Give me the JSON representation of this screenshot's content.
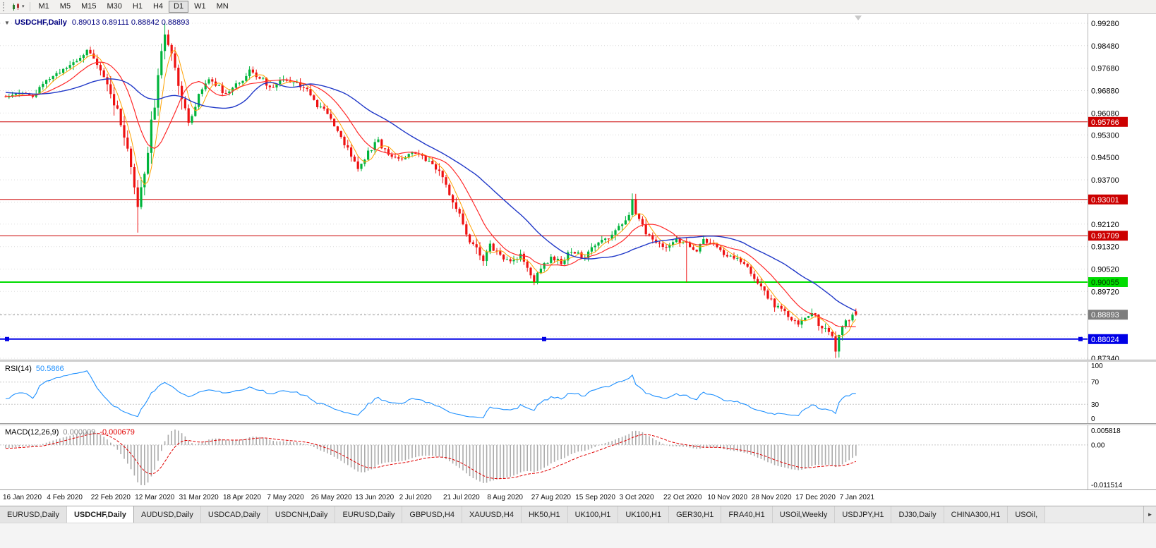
{
  "toolbar": {
    "timeframes": [
      "M1",
      "M5",
      "M15",
      "M30",
      "H1",
      "H4",
      "D1",
      "W1",
      "MN"
    ],
    "active_timeframe": "D1"
  },
  "icons": {
    "chart_type": "candlestick-chart-icon",
    "dropdown_caret": "▾",
    "chart_collapse": "▼",
    "tab_scroll_right": "►"
  },
  "chart": {
    "symbol_period": "USDCHF,Daily",
    "ohlc": "0.89013 0.89111 0.88842 0.88893"
  },
  "time_axis": {
    "dates": [
      "16 Jan 2020",
      "4 Feb 2020",
      "22 Feb 2020",
      "12 Mar 2020",
      "31 Mar 2020",
      "18 Apr 2020",
      "7 May 2020",
      "26 May 2020",
      "13 Jun 2020",
      "2 Jul 2020",
      "21 Jul 2020",
      "8 Aug 2020",
      "27 Aug 2020",
      "15 Sep 2020",
      "3 Oct 2020",
      "22 Oct 2020",
      "10 Nov 2020",
      "28 Nov 2020",
      "17 Dec 2020",
      "7 Jan 2021"
    ]
  },
  "tabs": {
    "items": [
      {
        "label": "EURUSD,Daily",
        "active": false
      },
      {
        "label": "USDCHF,Daily",
        "active": true
      },
      {
        "label": "AUDUSD,Daily",
        "active": false
      },
      {
        "label": "USDCAD,Daily",
        "active": false
      },
      {
        "label": "USDCNH,Daily",
        "active": false
      },
      {
        "label": "EURUSD,Daily",
        "active": false
      },
      {
        "label": "GBPUSD,H4",
        "active": false
      },
      {
        "label": "XAUUSD,H4",
        "active": false
      },
      {
        "label": "HK50,H1",
        "active": false
      },
      {
        "label": "UK100,H1",
        "active": false
      },
      {
        "label": "UK100,H1",
        "active": false
      },
      {
        "label": "GER30,H1",
        "active": false
      },
      {
        "label": "FRA40,H1",
        "active": false
      },
      {
        "label": "USOil,Weekly",
        "active": false
      },
      {
        "label": "USDJPY,H1",
        "active": false
      },
      {
        "label": "DJ30,Daily",
        "active": false
      },
      {
        "label": "CHINA300,H1",
        "active": false
      },
      {
        "label": "USOil,",
        "active": false
      }
    ]
  },
  "chart_data": {
    "type": "candlestick",
    "symbol": "USDCHF",
    "timeframe": "Daily",
    "current_ohlc": {
      "open": 0.89013,
      "high": 0.89111,
      "low": 0.88842,
      "close": 0.88893
    },
    "main": {
      "visible_candles": 252,
      "y_range": [
        0.8734,
        0.9928
      ],
      "colors": {
        "up": "#00b43c",
        "down": "#ee1111"
      },
      "grid": [
        {
          "price": 0.9928,
          "label": "0.99280"
        },
        {
          "price": 0.9848,
          "label": "0.98480"
        },
        {
          "price": 0.9768,
          "label": "0.97680"
        },
        {
          "price": 0.9688,
          "label": "0.96880"
        },
        {
          "price": 0.9608,
          "label": "0.96080"
        },
        {
          "price": 0.953,
          "label": "0.95300"
        },
        {
          "price": 0.945,
          "label": "0.94500"
        },
        {
          "price": 0.937,
          "label": "0.93700"
        },
        {
          "price": 0.929,
          "label": null
        },
        {
          "price": 0.9212,
          "label": "0.92120"
        },
        {
          "price": 0.9132,
          "label": "0.91320"
        },
        {
          "price": 0.9052,
          "label": "0.90520"
        },
        {
          "price": 0.8972,
          "label": "0.89720"
        },
        {
          "price": 0.8892,
          "label": null
        },
        {
          "price": 0.8812,
          "label": null
        },
        {
          "price": 0.8734,
          "label": "0.87340"
        }
      ],
      "axis_markers": [
        {
          "price": 0.95766,
          "text": "0.95766",
          "bg": "#cc0000",
          "fg": "#ffffff"
        },
        {
          "price": 0.93001,
          "text": "0.93001",
          "bg": "#cc0000",
          "fg": "#ffffff"
        },
        {
          "price": 0.91709,
          "text": "0.91709",
          "bg": "#cc0000",
          "fg": "#ffffff"
        },
        {
          "price": 0.90055,
          "text": "0.90055",
          "bg": "#00dc00",
          "fg": "#003b00"
        },
        {
          "price": 0.88893,
          "text": "0.88893",
          "bg": "#7d7d7d",
          "fg": "#ffffff"
        },
        {
          "price": 0.88024,
          "text": "0.88024",
          "bg": "#0000e6",
          "fg": "#ffffff"
        }
      ],
      "hlines": [
        {
          "price": 0.95766,
          "color": "#cc0000",
          "width": 1,
          "handles": false
        },
        {
          "price": 0.93001,
          "color": "#cc0000",
          "width": 1,
          "handles": false
        },
        {
          "price": 0.91709,
          "color": "#cc0000",
          "width": 1,
          "handles": false
        },
        {
          "price": 0.90055,
          "color": "#00dc00",
          "width": 2,
          "handles": false
        },
        {
          "price": 0.88024,
          "color": "#0000e6",
          "width": 2,
          "handles": true
        }
      ],
      "current_price": 0.88893,
      "moving_averages": [
        {
          "name": "fast",
          "period": 5,
          "color": "#ffa200",
          "width": 1
        },
        {
          "name": "medium",
          "period": 13,
          "color": "#ff2a2a",
          "width": 1.2
        },
        {
          "name": "slow",
          "period": 34,
          "color": "#2038c8",
          "width": 1.4
        }
      ],
      "pre_close_anchors": [
        [
          -40,
          0.9718
        ],
        [
          -30,
          0.9702
        ],
        [
          -20,
          0.9688
        ],
        [
          -10,
          0.9672
        ]
      ],
      "close_anchors": [
        [
          0,
          0.9665
        ],
        [
          4,
          0.9688
        ],
        [
          8,
          0.9668
        ],
        [
          13,
          0.9732
        ],
        [
          18,
          0.9768
        ],
        [
          22,
          0.9812
        ],
        [
          24,
          0.9838
        ],
        [
          26,
          0.9792
        ],
        [
          29,
          0.9732
        ],
        [
          32,
          0.9642
        ],
        [
          35,
          0.9522
        ],
        [
          38,
          0.9332
        ],
        [
          39,
          0.9268
        ],
        [
          41,
          0.9402
        ],
        [
          43,
          0.9562
        ],
        [
          45,
          0.9722
        ],
        [
          47,
          0.9902
        ],
        [
          48,
          0.9862
        ],
        [
          50,
          0.9782
        ],
        [
          52,
          0.9662
        ],
        [
          54,
          0.9572
        ],
        [
          57,
          0.9672
        ],
        [
          60,
          0.9732
        ],
        [
          63,
          0.9702
        ],
        [
          65,
          0.9672
        ],
        [
          68,
          0.9706
        ],
        [
          72,
          0.9756
        ],
        [
          76,
          0.9726
        ],
        [
          78,
          0.9696
        ],
        [
          82,
          0.9731
        ],
        [
          86,
          0.9716
        ],
        [
          89,
          0.9691
        ],
        [
          91,
          0.9646
        ],
        [
          95,
          0.9606
        ],
        [
          99,
          0.9526
        ],
        [
          102,
          0.9451
        ],
        [
          104,
          0.9406
        ],
        [
          107,
          0.9476
        ],
        [
          110,
          0.9506
        ],
        [
          113,
          0.9461
        ],
        [
          117,
          0.9446
        ],
        [
          121,
          0.9471
        ],
        [
          125,
          0.9431
        ],
        [
          128,
          0.9391
        ],
        [
          130,
          0.9351
        ],
        [
          133,
          0.9271
        ],
        [
          136,
          0.9181
        ],
        [
          139,
          0.9116
        ],
        [
          141,
          0.9086
        ],
        [
          143,
          0.9131
        ],
        [
          146,
          0.9106
        ],
        [
          149,
          0.9071
        ],
        [
          152,
          0.9101
        ],
        [
          155,
          0.9036
        ],
        [
          156,
          0.9011
        ],
        [
          158,
          0.9061
        ],
        [
          161,
          0.9091
        ],
        [
          164,
          0.9076
        ],
        [
          167,
          0.9121
        ],
        [
          169,
          0.9106
        ],
        [
          171,
          0.9086
        ],
        [
          173,
          0.9126
        ],
        [
          176,
          0.9151
        ],
        [
          179,
          0.9171
        ],
        [
          182,
          0.9206
        ],
        [
          184,
          0.9256
        ],
        [
          185,
          0.9291
        ],
        [
          187,
          0.9231
        ],
        [
          189,
          0.9176
        ],
        [
          192,
          0.9151
        ],
        [
          195,
          0.9131
        ],
        [
          198,
          0.9161
        ],
        [
          201,
          0.9141
        ],
        [
          204,
          0.9116
        ],
        [
          206,
          0.9156
        ],
        [
          208,
          0.9141
        ],
        [
          211,
          0.9116
        ],
        [
          214,
          0.9096
        ],
        [
          217,
          0.9076
        ],
        [
          219,
          0.9051
        ],
        [
          221,
          0.9021
        ],
        [
          223,
          0.8986
        ],
        [
          225,
          0.8946
        ],
        [
          227,
          0.8926
        ],
        [
          229,
          0.8906
        ],
        [
          231,
          0.8886
        ],
        [
          234,
          0.8856
        ],
        [
          236,
          0.8876
        ],
        [
          238,
          0.8891
        ],
        [
          240,
          0.8862
        ],
        [
          242,
          0.8836
        ],
        [
          244,
          0.8801
        ],
        [
          245,
          0.8769
        ],
        [
          246,
          0.8821
        ],
        [
          248,
          0.8869
        ],
        [
          250,
          0.8888
        ],
        [
          251,
          0.88893
        ]
      ],
      "volatility_zones": [
        [
          18,
          28,
          1.4
        ],
        [
          30,
          52,
          2.6
        ],
        [
          96,
          108,
          1.3
        ],
        [
          128,
          143,
          1.6
        ],
        [
          178,
          190,
          1.5
        ],
        [
          218,
          232,
          1.2
        ],
        [
          238,
          249,
          1.5
        ]
      ],
      "wick_overrides": {
        "39": {
          "l": 0.9182
        },
        "47": {
          "h": 0.9928
        },
        "156": {
          "l": 0.8998
        },
        "185": {
          "h": 0.93
        },
        "201": {
          "l": 0.9005
        },
        "245": {
          "l": 0.8735
        }
      },
      "last_candle": {
        "o": 0.89013,
        "h": 0.89111,
        "l": 0.88842,
        "c": 0.88893
      }
    },
    "rsi": {
      "label_name": "RSI(14)",
      "label_value": "50.5866",
      "period": 14,
      "current": 50.5866,
      "color": "#1e90ff",
      "levels": [
        {
          "text": "100",
          "value": 100,
          "line": false
        },
        {
          "text": "70",
          "value": 70,
          "line": true
        },
        {
          "text": "30",
          "value": 30,
          "line": true
        },
        {
          "text": "0",
          "value": 0,
          "line": false
        }
      ]
    },
    "macd": {
      "label_name": "MACD(12,26,9)",
      "label_main": "0.000009",
      "label_signal": "-0.000679",
      "fast": 12,
      "slow": 26,
      "signal": 9,
      "axis_labels": {
        "max": "0.005818",
        "zero": "0.00",
        "min": "-0.011514"
      },
      "histogram_color": "#ababab",
      "signal_color": "#e00000"
    }
  }
}
